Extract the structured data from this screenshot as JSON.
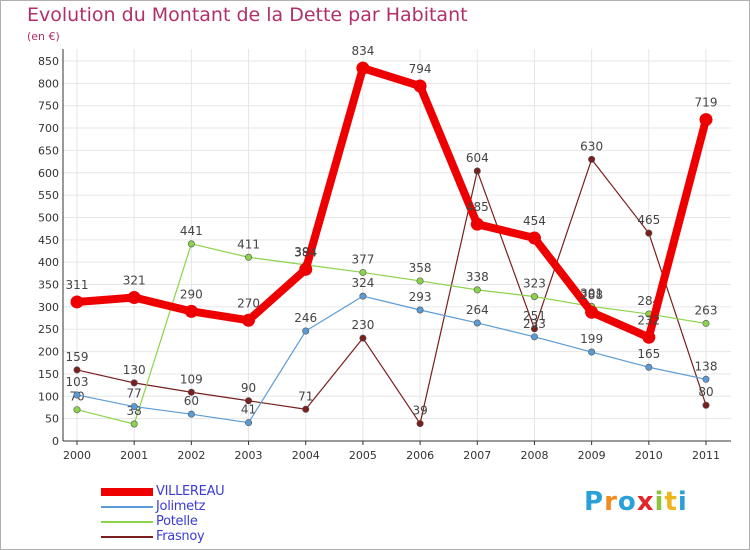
{
  "title": "Evolution du Montant de la Dette par Habitant",
  "unit_label": "(en €)",
  "logo": {
    "text": "Proxiti",
    "colors": [
      "#2aa0d8",
      "#f08c1e",
      "#2aa0d8",
      "#e0282a",
      "#8cc43c",
      "#f0b41e",
      "#2aa0d8"
    ]
  },
  "chart_data": {
    "type": "line",
    "title": "Evolution du Montant de la Dette par Habitant",
    "ylabel": "(en €)",
    "xlabel": "",
    "categories": [
      "2000",
      "2001",
      "2002",
      "2003",
      "2004",
      "2005",
      "2006",
      "2007",
      "2008",
      "2009",
      "2010",
      "2011"
    ],
    "ylim": [
      0,
      850
    ],
    "yticks": [
      0,
      50,
      100,
      150,
      200,
      250,
      300,
      350,
      400,
      450,
      500,
      550,
      600,
      650,
      700,
      750,
      800,
      850
    ],
    "grid": true,
    "legend_position": "bottom-left",
    "series": [
      {
        "name": "VILLEREAU",
        "color": "#ee0000",
        "values": [
          311,
          321,
          290,
          270,
          384,
          834,
          794,
          485,
          454,
          288,
          232,
          719
        ]
      },
      {
        "name": "Jolimetz",
        "color": "#5b9bd5",
        "values": [
          103,
          77,
          60,
          41,
          246,
          324,
          293,
          264,
          233,
          199,
          165,
          138
        ]
      },
      {
        "name": "Potelle",
        "color": "#8bd34a",
        "values": [
          70,
          38,
          441,
          411,
          394,
          377,
          358,
          338,
          323,
          301,
          284,
          263
        ]
      },
      {
        "name": "Frasnoy",
        "color": "#7a1e1e",
        "values": [
          159,
          130,
          109,
          90,
          71,
          230,
          39,
          604,
          251,
          630,
          465,
          80
        ]
      }
    ]
  }
}
